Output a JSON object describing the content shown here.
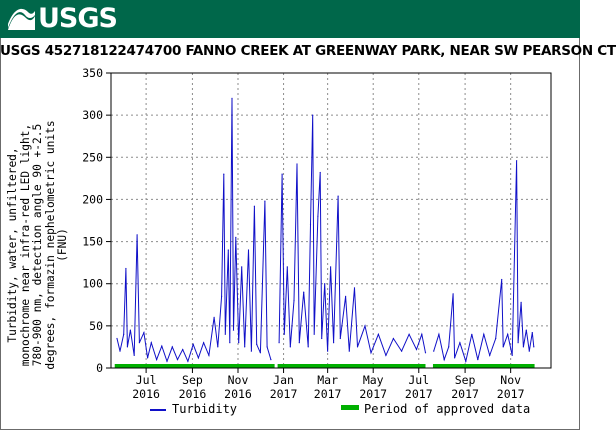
{
  "header": {
    "logo_text": "USGS",
    "brand_color": "#00674a"
  },
  "chart_data": {
    "type": "line",
    "title": "USGS 452718122474700 FANNO CREEK AT GREENWAY PARK, NEAR SW PEARSON CT",
    "ylabel_lines": [
      "Turbidity, water, unfiltered,",
      "monochrome near infra-red LED light,",
      "780-900 nm, detection angle 90 +-2.5",
      "degrees, formazin nephelometric units",
      "(FNU)"
    ],
    "ylim": [
      0,
      350
    ],
    "yticks": [
      0,
      50,
      100,
      150,
      200,
      250,
      300,
      350
    ],
    "xlim": [
      "2016-05-15",
      "2017-12-25"
    ],
    "xticks": [
      {
        "date": "2016-07-01",
        "month": "Jul",
        "year": "2016"
      },
      {
        "date": "2016-09-01",
        "month": "Sep",
        "year": "2016"
      },
      {
        "date": "2016-11-01",
        "month": "Nov",
        "year": "2016"
      },
      {
        "date": "2017-01-01",
        "month": "Jan",
        "year": "2017"
      },
      {
        "date": "2017-03-01",
        "month": "Mar",
        "year": "2017"
      },
      {
        "date": "2017-05-01",
        "month": "May",
        "year": "2017"
      },
      {
        "date": "2017-07-01",
        "month": "Jul",
        "year": "2017"
      },
      {
        "date": "2017-09-01",
        "month": "Sep",
        "year": "2017"
      },
      {
        "date": "2017-11-01",
        "month": "Nov",
        "year": "2017"
      }
    ],
    "grid": true,
    "series": [
      {
        "name": "Turbidity",
        "color": "#1010c8",
        "segments": [
          {
            "points": [
              [
                "2016-05-23",
                35
              ],
              [
                "2016-05-27",
                20
              ],
              [
                "2016-06-01",
                40
              ],
              [
                "2016-06-04",
                118
              ],
              [
                "2016-06-06",
                25
              ],
              [
                "2016-06-10",
                45
              ],
              [
                "2016-06-15",
                15
              ],
              [
                "2016-06-19",
                158
              ],
              [
                "2016-06-22",
                30
              ],
              [
                "2016-06-28",
                42
              ],
              [
                "2016-07-03",
                12
              ],
              [
                "2016-07-08",
                30
              ],
              [
                "2016-07-15",
                10
              ],
              [
                "2016-07-22",
                26
              ],
              [
                "2016-07-29",
                8
              ],
              [
                "2016-08-05",
                25
              ],
              [
                "2016-08-12",
                10
              ],
              [
                "2016-08-19",
                22
              ],
              [
                "2016-08-26",
                8
              ],
              [
                "2016-09-02",
                28
              ],
              [
                "2016-09-09",
                12
              ],
              [
                "2016-09-16",
                30
              ],
              [
                "2016-09-23",
                15
              ],
              [
                "2016-09-30",
                60
              ],
              [
                "2016-10-05",
                25
              ],
              [
                "2016-10-10",
                85
              ],
              [
                "2016-10-13",
                230
              ],
              [
                "2016-10-15",
                40
              ],
              [
                "2016-10-19",
                140
              ],
              [
                "2016-10-21",
                30
              ],
              [
                "2016-10-24",
                320
              ],
              [
                "2016-10-26",
                45
              ],
              [
                "2016-10-29",
                155
              ],
              [
                "2016-11-02",
                30
              ],
              [
                "2016-11-06",
                120
              ],
              [
                "2016-11-10",
                25
              ],
              [
                "2016-11-15",
                140
              ],
              [
                "2016-11-19",
                20
              ],
              [
                "2016-11-23",
                192
              ],
              [
                "2016-11-26",
                28
              ],
              [
                "2016-12-01",
                18
              ],
              [
                "2016-12-07",
                198
              ],
              [
                "2016-12-10",
                25
              ],
              [
                "2016-12-15",
                10
              ]
            ]
          },
          {
            "points": [
              [
                "2016-12-26",
                30
              ],
              [
                "2016-12-30",
                230
              ],
              [
                "2017-01-02",
                40
              ],
              [
                "2017-01-06",
                120
              ],
              [
                "2017-01-10",
                25
              ],
              [
                "2017-01-15",
                80
              ],
              [
                "2017-01-19",
                242
              ],
              [
                "2017-01-22",
                30
              ],
              [
                "2017-01-28",
                90
              ],
              [
                "2017-02-03",
                25
              ],
              [
                "2017-02-06",
                170
              ],
              [
                "2017-02-09",
                300
              ],
              [
                "2017-02-11",
                40
              ],
              [
                "2017-02-16",
                180
              ],
              [
                "2017-02-19",
                232
              ],
              [
                "2017-02-21",
                35
              ],
              [
                "2017-02-25",
                100
              ],
              [
                "2017-03-01",
                20
              ],
              [
                "2017-03-05",
                120
              ],
              [
                "2017-03-09",
                30
              ],
              [
                "2017-03-15",
                204
              ],
              [
                "2017-03-18",
                35
              ],
              [
                "2017-03-25",
                85
              ],
              [
                "2017-03-30",
                20
              ],
              [
                "2017-04-06",
                95
              ],
              [
                "2017-04-10",
                25
              ],
              [
                "2017-04-20",
                50
              ],
              [
                "2017-04-28",
                18
              ],
              [
                "2017-05-08",
                40
              ],
              [
                "2017-05-18",
                15
              ],
              [
                "2017-05-28",
                35
              ],
              [
                "2017-06-08",
                20
              ],
              [
                "2017-06-18",
                40
              ],
              [
                "2017-06-28",
                22
              ],
              [
                "2017-07-05",
                40
              ],
              [
                "2017-07-10",
                18
              ]
            ]
          },
          {
            "points": [
              [
                "2017-07-21",
                20
              ],
              [
                "2017-07-28",
                40
              ],
              [
                "2017-08-04",
                10
              ],
              [
                "2017-08-10",
                25
              ],
              [
                "2017-08-16",
                88
              ],
              [
                "2017-08-18",
                12
              ],
              [
                "2017-08-25",
                30
              ],
              [
                "2017-09-02",
                8
              ],
              [
                "2017-09-10",
                40
              ],
              [
                "2017-09-18",
                10
              ],
              [
                "2017-09-26",
                40
              ],
              [
                "2017-10-04",
                15
              ],
              [
                "2017-10-12",
                35
              ],
              [
                "2017-10-20",
                105
              ],
              [
                "2017-10-22",
                25
              ],
              [
                "2017-10-28",
                40
              ],
              [
                "2017-11-03",
                15
              ],
              [
                "2017-11-09",
                246
              ],
              [
                "2017-11-11",
                30
              ],
              [
                "2017-11-15",
                78
              ],
              [
                "2017-11-18",
                25
              ],
              [
                "2017-11-22",
                45
              ],
              [
                "2017-11-26",
                20
              ],
              [
                "2017-11-30",
                42
              ],
              [
                "2017-12-02",
                25
              ]
            ]
          }
        ]
      }
    ],
    "approved_periods": [
      {
        "start": "2016-05-20",
        "end": "2016-12-20"
      },
      {
        "start": "2016-12-24",
        "end": "2017-07-10"
      },
      {
        "start": "2017-07-20",
        "end": "2017-12-03"
      }
    ],
    "legend": {
      "position": "bottom",
      "turbidity_label": "Turbidity",
      "approved_label": "Period of approved data",
      "approved_color": "#00b000"
    }
  }
}
